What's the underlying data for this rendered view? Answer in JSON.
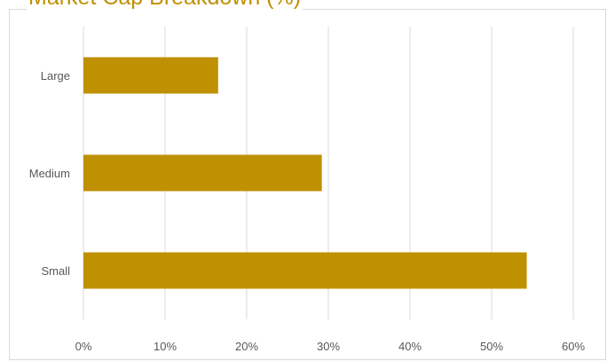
{
  "chart_data": {
    "type": "bar",
    "orientation": "horizontal",
    "title": "Market Cap Breakdown (%)",
    "categories": [
      "Large",
      "Medium",
      "Small"
    ],
    "values": [
      16.5,
      29.2,
      54.3
    ],
    "xlabel": "",
    "ylabel": "",
    "xlim": [
      0,
      60
    ],
    "x_ticks": [
      "0%",
      "10%",
      "20%",
      "30%",
      "40%",
      "50%",
      "60%"
    ],
    "grid": "vertical",
    "legend": "none",
    "bar_color": "#BF9000",
    "title_color": "#BF9000",
    "grid_color": "#D9D9D9",
    "text_color": "#595959"
  }
}
